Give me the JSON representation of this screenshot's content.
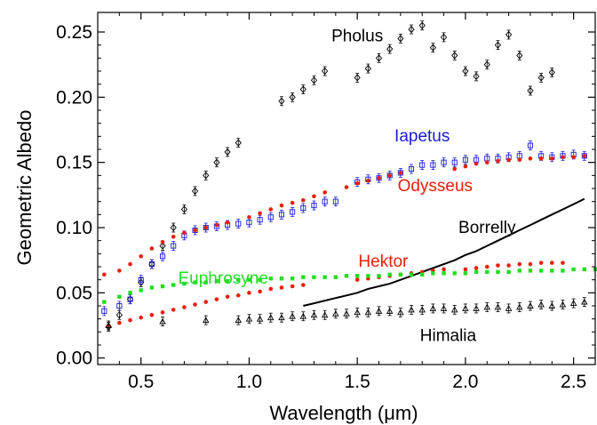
{
  "chart_data": {
    "type": "scatter",
    "title": "",
    "xlabel": "Wavelength (μm)",
    "ylabel": "Geometric Albedo",
    "xlim": [
      0.3,
      2.6
    ],
    "ylim": [
      -0.005,
      0.265
    ],
    "x_ticks": [
      "0.5",
      "1.0",
      "1.5",
      "2.0",
      "2.5"
    ],
    "y_ticks": [
      "0.00",
      "0.05",
      "0.10",
      "0.15",
      "0.20",
      "0.25"
    ],
    "grid": false,
    "series": [
      {
        "name": "Pholus",
        "color": "#000000",
        "marker": "diamond",
        "error_bars": true,
        "points": [
          [
            0.35,
            0.024
          ],
          [
            0.4,
            0.033
          ],
          [
            0.45,
            0.045
          ],
          [
            0.5,
            0.058
          ],
          [
            0.55,
            0.072
          ],
          [
            0.6,
            0.086
          ],
          [
            0.65,
            0.1
          ],
          [
            0.7,
            0.114
          ],
          [
            0.75,
            0.128
          ],
          [
            0.8,
            0.14
          ],
          [
            0.85,
            0.15
          ],
          [
            0.9,
            0.158
          ],
          [
            0.95,
            0.165
          ],
          [
            1.15,
            0.197
          ],
          [
            1.2,
            0.2
          ],
          [
            1.25,
            0.206
          ],
          [
            1.3,
            0.213
          ],
          [
            1.35,
            0.22
          ],
          [
            1.5,
            0.215
          ],
          [
            1.55,
            0.222
          ],
          [
            1.6,
            0.23
          ],
          [
            1.65,
            0.237
          ],
          [
            1.7,
            0.245
          ],
          [
            1.75,
            0.252
          ],
          [
            1.8,
            0.255
          ],
          [
            1.85,
            0.238
          ],
          [
            1.9,
            0.246
          ],
          [
            1.95,
            0.232
          ],
          [
            2.0,
            0.22
          ],
          [
            2.05,
            0.216
          ],
          [
            2.1,
            0.225
          ],
          [
            2.15,
            0.24
          ],
          [
            2.2,
            0.248
          ],
          [
            2.25,
            0.232
          ],
          [
            2.3,
            0.205
          ],
          [
            2.35,
            0.215
          ],
          [
            2.4,
            0.219
          ]
        ]
      },
      {
        "name": "Iapetus",
        "color": "#1a1ad6",
        "marker": "square",
        "error_bars": true,
        "points": [
          [
            0.33,
            0.036
          ],
          [
            0.4,
            0.04
          ],
          [
            0.45,
            0.045
          ],
          [
            0.5,
            0.06
          ],
          [
            0.55,
            0.072
          ],
          [
            0.6,
            0.078
          ],
          [
            0.65,
            0.086
          ],
          [
            0.7,
            0.094
          ],
          [
            0.75,
            0.098
          ],
          [
            0.8,
            0.1
          ],
          [
            0.85,
            0.101
          ],
          [
            0.9,
            0.102
          ],
          [
            0.95,
            0.103
          ],
          [
            1.0,
            0.104
          ],
          [
            1.05,
            0.106
          ],
          [
            1.1,
            0.108
          ],
          [
            1.15,
            0.11
          ],
          [
            1.2,
            0.112
          ],
          [
            1.25,
            0.115
          ],
          [
            1.3,
            0.117
          ],
          [
            1.35,
            0.12
          ],
          [
            1.4,
            0.12
          ],
          [
            1.5,
            0.135
          ],
          [
            1.55,
            0.137
          ],
          [
            1.6,
            0.138
          ],
          [
            1.65,
            0.14
          ],
          [
            1.7,
            0.142
          ],
          [
            1.75,
            0.145
          ],
          [
            1.8,
            0.148
          ],
          [
            1.85,
            0.148
          ],
          [
            1.9,
            0.15
          ],
          [
            1.95,
            0.15
          ],
          [
            2.0,
            0.152
          ],
          [
            2.05,
            0.152
          ],
          [
            2.1,
            0.153
          ],
          [
            2.15,
            0.153
          ],
          [
            2.2,
            0.154
          ],
          [
            2.25,
            0.155
          ],
          [
            2.3,
            0.163
          ],
          [
            2.35,
            0.155
          ],
          [
            2.4,
            0.154
          ],
          [
            2.45,
            0.155
          ],
          [
            2.5,
            0.156
          ],
          [
            2.55,
            0.155
          ]
        ]
      },
      {
        "name": "Odysseus",
        "color": "#e8200c",
        "marker": "circle",
        "error_bars": false,
        "points": [
          [
            0.33,
            0.064
          ],
          [
            0.4,
            0.067
          ],
          [
            0.45,
            0.072
          ],
          [
            0.5,
            0.078
          ],
          [
            0.55,
            0.084
          ],
          [
            0.6,
            0.089
          ],
          [
            0.65,
            0.093
          ],
          [
            0.7,
            0.096
          ],
          [
            0.75,
            0.098
          ],
          [
            0.8,
            0.1
          ],
          [
            0.85,
            0.102
          ],
          [
            0.9,
            0.104
          ],
          [
            1.0,
            0.108
          ],
          [
            1.05,
            0.111
          ],
          [
            1.1,
            0.114
          ],
          [
            1.15,
            0.117
          ],
          [
            1.2,
            0.119
          ],
          [
            1.25,
            0.121
          ],
          [
            1.3,
            0.124
          ],
          [
            1.35,
            0.127
          ],
          [
            1.45,
            0.131
          ],
          [
            1.5,
            0.134
          ],
          [
            1.55,
            0.136
          ],
          [
            1.6,
            0.138
          ],
          [
            1.65,
            0.14
          ],
          [
            1.7,
            0.142
          ],
          [
            1.95,
            0.145
          ],
          [
            2.0,
            0.147
          ],
          [
            2.05,
            0.149
          ],
          [
            2.1,
            0.15
          ],
          [
            2.15,
            0.151
          ],
          [
            2.2,
            0.152
          ],
          [
            2.25,
            0.152
          ],
          [
            2.3,
            0.153
          ],
          [
            2.35,
            0.153
          ],
          [
            2.4,
            0.153
          ],
          [
            2.45,
            0.154
          ],
          [
            2.5,
            0.154
          ],
          [
            2.55,
            0.155
          ]
        ]
      },
      {
        "name": "Borrelly",
        "color": "#000000",
        "marker": "line",
        "error_bars": false,
        "points": [
          [
            1.25,
            0.04
          ],
          [
            1.3,
            0.042
          ],
          [
            1.35,
            0.044
          ],
          [
            1.4,
            0.046
          ],
          [
            1.45,
            0.048
          ],
          [
            1.5,
            0.05
          ],
          [
            1.55,
            0.053
          ],
          [
            1.6,
            0.055
          ],
          [
            1.65,
            0.057
          ],
          [
            1.7,
            0.06
          ],
          [
            1.75,
            0.063
          ],
          [
            1.8,
            0.066
          ],
          [
            1.85,
            0.069
          ],
          [
            1.9,
            0.072
          ],
          [
            1.95,
            0.075
          ],
          [
            2.0,
            0.079
          ],
          [
            2.05,
            0.082
          ],
          [
            2.1,
            0.086
          ],
          [
            2.15,
            0.09
          ],
          [
            2.2,
            0.094
          ],
          [
            2.25,
            0.098
          ],
          [
            2.3,
            0.102
          ],
          [
            2.35,
            0.106
          ],
          [
            2.4,
            0.11
          ],
          [
            2.45,
            0.114
          ],
          [
            2.5,
            0.118
          ],
          [
            2.55,
            0.122
          ]
        ]
      },
      {
        "name": "Hektor",
        "color": "#e8200c",
        "marker": "circle",
        "error_bars": false,
        "points": [
          [
            0.35,
            0.025
          ],
          [
            0.4,
            0.027
          ],
          [
            0.45,
            0.029
          ],
          [
            0.5,
            0.031
          ],
          [
            0.55,
            0.033
          ],
          [
            0.6,
            0.035
          ],
          [
            0.65,
            0.037
          ],
          [
            0.7,
            0.039
          ],
          [
            0.75,
            0.041
          ],
          [
            0.8,
            0.043
          ],
          [
            0.85,
            0.045
          ],
          [
            0.9,
            0.047
          ],
          [
            0.95,
            0.048
          ],
          [
            1.0,
            0.05
          ],
          [
            1.05,
            0.051
          ],
          [
            1.1,
            0.053
          ],
          [
            1.15,
            0.054
          ],
          [
            1.2,
            0.055
          ],
          [
            1.25,
            0.056
          ],
          [
            1.5,
            0.06
          ],
          [
            1.55,
            0.061
          ],
          [
            1.6,
            0.062
          ],
          [
            1.65,
            0.063
          ],
          [
            1.7,
            0.064
          ],
          [
            1.75,
            0.065
          ],
          [
            1.8,
            0.066
          ],
          [
            1.85,
            0.067
          ],
          [
            1.9,
            0.068
          ],
          [
            2.0,
            0.068
          ],
          [
            2.05,
            0.069
          ],
          [
            2.1,
            0.07
          ],
          [
            2.15,
            0.071
          ],
          [
            2.2,
            0.071
          ],
          [
            2.25,
            0.072
          ],
          [
            2.3,
            0.072
          ],
          [
            2.35,
            0.073
          ],
          [
            2.4,
            0.073
          ],
          [
            2.45,
            0.073
          ]
        ]
      },
      {
        "name": "Euphrosyne",
        "color": "#22dd22",
        "marker": "square",
        "error_bars": false,
        "points": [
          [
            0.33,
            0.043
          ],
          [
            0.4,
            0.047
          ],
          [
            0.45,
            0.05
          ],
          [
            0.5,
            0.052
          ],
          [
            0.55,
            0.054
          ],
          [
            0.6,
            0.055
          ],
          [
            0.65,
            0.056
          ],
          [
            0.7,
            0.057
          ],
          [
            0.75,
            0.058
          ],
          [
            0.8,
            0.058
          ],
          [
            0.85,
            0.059
          ],
          [
            0.9,
            0.059
          ],
          [
            0.95,
            0.06
          ],
          [
            1.0,
            0.06
          ],
          [
            1.05,
            0.06
          ],
          [
            1.1,
            0.061
          ],
          [
            1.15,
            0.061
          ],
          [
            1.2,
            0.061
          ],
          [
            1.25,
            0.062
          ],
          [
            1.3,
            0.062
          ],
          [
            1.35,
            0.062
          ],
          [
            1.4,
            0.062
          ],
          [
            1.45,
            0.063
          ],
          [
            1.5,
            0.063
          ],
          [
            1.55,
            0.063
          ],
          [
            1.6,
            0.063
          ],
          [
            1.65,
            0.064
          ],
          [
            1.7,
            0.064
          ],
          [
            1.75,
            0.064
          ],
          [
            1.8,
            0.064
          ],
          [
            1.85,
            0.065
          ],
          [
            1.9,
            0.065
          ],
          [
            1.95,
            0.065
          ],
          [
            2.0,
            0.065
          ],
          [
            2.05,
            0.066
          ],
          [
            2.1,
            0.066
          ],
          [
            2.15,
            0.066
          ],
          [
            2.2,
            0.066
          ],
          [
            2.25,
            0.067
          ],
          [
            2.3,
            0.067
          ],
          [
            2.35,
            0.067
          ],
          [
            2.4,
            0.067
          ],
          [
            2.45,
            0.067
          ],
          [
            2.5,
            0.068
          ],
          [
            2.55,
            0.068
          ],
          [
            2.6,
            0.068
          ]
        ]
      },
      {
        "name": "Himalia",
        "color": "#000000",
        "marker": "triangle",
        "error_bars": true,
        "points": [
          [
            0.35,
            0.025
          ],
          [
            0.6,
            0.028
          ],
          [
            0.8,
            0.029
          ],
          [
            0.95,
            0.029
          ],
          [
            1.0,
            0.03
          ],
          [
            1.05,
            0.03
          ],
          [
            1.1,
            0.031
          ],
          [
            1.15,
            0.031
          ],
          [
            1.2,
            0.032
          ],
          [
            1.25,
            0.032
          ],
          [
            1.3,
            0.033
          ],
          [
            1.35,
            0.033
          ],
          [
            1.4,
            0.034
          ],
          [
            1.45,
            0.034
          ],
          [
            1.5,
            0.035
          ],
          [
            1.55,
            0.035
          ],
          [
            1.6,
            0.036
          ],
          [
            1.65,
            0.036
          ],
          [
            1.7,
            0.035
          ],
          [
            1.75,
            0.037
          ],
          [
            1.8,
            0.037
          ],
          [
            1.85,
            0.038
          ],
          [
            1.9,
            0.038
          ],
          [
            1.95,
            0.037
          ],
          [
            2.0,
            0.038
          ],
          [
            2.05,
            0.038
          ],
          [
            2.1,
            0.039
          ],
          [
            2.15,
            0.039
          ],
          [
            2.2,
            0.038
          ],
          [
            2.25,
            0.039
          ],
          [
            2.3,
            0.04
          ],
          [
            2.35,
            0.041
          ],
          [
            2.4,
            0.04
          ],
          [
            2.45,
            0.041
          ],
          [
            2.5,
            0.042
          ],
          [
            2.55,
            0.043
          ]
        ]
      }
    ],
    "annotations": [
      {
        "text": "Pholus",
        "x": 1.5,
        "y": 0.243,
        "color": "#000000"
      },
      {
        "text": "Iapetus",
        "x": 1.8,
        "y": 0.166,
        "color": "#1a1ad6"
      },
      {
        "text": "Odysseus",
        "x": 1.86,
        "y": 0.128,
        "color": "#e8200c"
      },
      {
        "text": "Borrelly",
        "x": 2.1,
        "y": 0.096,
        "color": "#000000"
      },
      {
        "text": "Hektor",
        "x": 1.62,
        "y": 0.07,
        "color": "#e8200c"
      },
      {
        "text": "Euphrosyne",
        "x": 0.88,
        "y": 0.057,
        "color": "#22dd22"
      },
      {
        "text": "Himalia",
        "x": 1.92,
        "y": 0.013,
        "color": "#000000"
      }
    ]
  }
}
